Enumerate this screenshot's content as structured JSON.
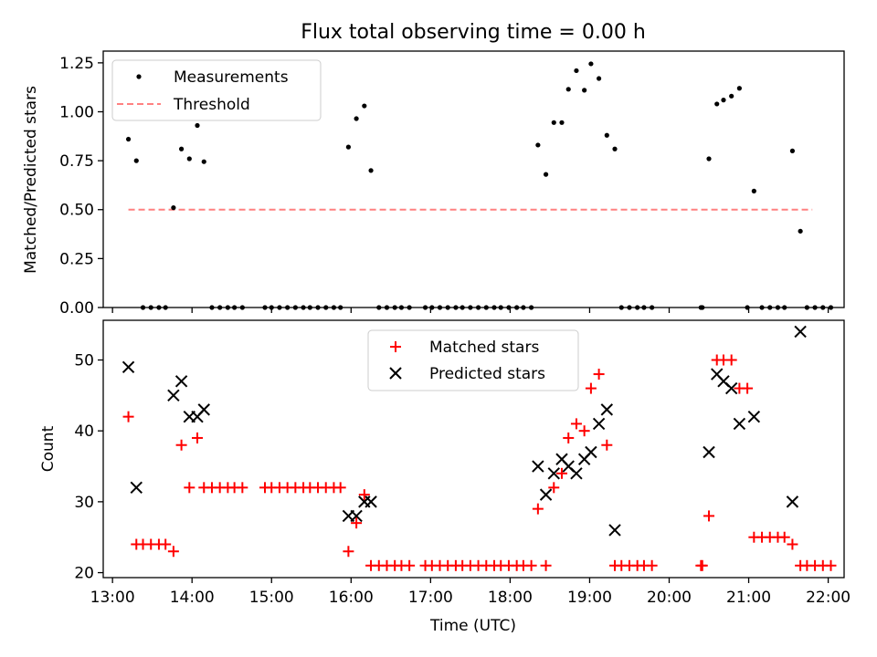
{
  "title": "Flux total observing time = 0.00 h",
  "chart_data": [
    {
      "type": "scatter",
      "xlabel": "",
      "ylabel": "Matched/Predicted stars",
      "xlim": [
        "12:53",
        "22:12"
      ],
      "ylim": [
        0,
        1.31
      ],
      "yticks": [
        "0.00",
        "0.25",
        "0.50",
        "0.75",
        "1.00",
        "1.25"
      ],
      "grid": false,
      "legend": {
        "placement": "top-left",
        "entries": [
          "Measurements",
          "Threshold"
        ]
      },
      "threshold": {
        "name": "Threshold",
        "y": 0.5,
        "x": [
          "13:12",
          "21:48"
        ],
        "color": "#ff8080",
        "style": "dashed"
      },
      "series": [
        {
          "name": "Measurements",
          "marker": "dot",
          "color": "#000000",
          "points": [
            [
              "13:12",
              0.86
            ],
            [
              "13:18",
              0.75
            ],
            [
              "13:23",
              0
            ],
            [
              "13:29",
              0
            ],
            [
              "13:35",
              0
            ],
            [
              "13:40",
              0
            ],
            [
              "13:46",
              0.51
            ],
            [
              "13:52",
              0.81
            ],
            [
              "13:58",
              0.76
            ],
            [
              "14:04",
              0.93
            ],
            [
              "14:09",
              0.745
            ],
            [
              "14:15",
              0
            ],
            [
              "14:21",
              0
            ],
            [
              "14:27",
              0
            ],
            [
              "14:32",
              0
            ],
            [
              "14:38",
              0
            ],
            [
              "14:55",
              0
            ],
            [
              "15:00",
              0
            ],
            [
              "15:06",
              0
            ],
            [
              "15:12",
              0
            ],
            [
              "15:18",
              0
            ],
            [
              "15:24",
              0
            ],
            [
              "15:29",
              0
            ],
            [
              "15:35",
              0
            ],
            [
              "15:41",
              0
            ],
            [
              "15:47",
              0
            ],
            [
              "15:52",
              0
            ],
            [
              "15:58",
              0.82
            ],
            [
              "16:04",
              0.965
            ],
            [
              "16:10",
              1.03
            ],
            [
              "16:15",
              0.7
            ],
            [
              "16:21",
              0
            ],
            [
              "16:27",
              0
            ],
            [
              "16:33",
              0
            ],
            [
              "16:38",
              0
            ],
            [
              "16:44",
              0
            ],
            [
              "16:56",
              0
            ],
            [
              "17:01",
              0
            ],
            [
              "17:07",
              0
            ],
            [
              "17:13",
              0
            ],
            [
              "17:19",
              0
            ],
            [
              "17:24",
              0
            ],
            [
              "17:30",
              0
            ],
            [
              "17:36",
              0
            ],
            [
              "17:42",
              0
            ],
            [
              "17:48",
              0
            ],
            [
              "17:53",
              0
            ],
            [
              "17:59",
              0
            ],
            [
              "18:05",
              0
            ],
            [
              "18:10",
              0
            ],
            [
              "18:16",
              0
            ],
            [
              "18:21",
              0.83
            ],
            [
              "18:27",
              0.68
            ],
            [
              "18:33",
              0.945
            ],
            [
              "18:39",
              0.945
            ],
            [
              "18:44",
              1.115
            ],
            [
              "18:50",
              1.21
            ],
            [
              "18:56",
              1.11
            ],
            [
              "19:01",
              1.245
            ],
            [
              "19:07",
              1.17
            ],
            [
              "19:13",
              0.88
            ],
            [
              "19:19",
              0.81
            ],
            [
              "19:24",
              0
            ],
            [
              "19:30",
              0
            ],
            [
              "19:36",
              0
            ],
            [
              "19:41",
              0
            ],
            [
              "19:47",
              0
            ],
            [
              "20:24",
              0
            ],
            [
              "20:25",
              0
            ],
            [
              "20:30",
              0.76
            ],
            [
              "20:36",
              1.04
            ],
            [
              "20:41",
              1.06
            ],
            [
              "20:47",
              1.08
            ],
            [
              "20:53",
              1.12
            ],
            [
              "20:59",
              0
            ],
            [
              "21:04",
              0.595
            ],
            [
              "21:10",
              0
            ],
            [
              "21:16",
              0
            ],
            [
              "21:22",
              0
            ],
            [
              "21:27",
              0
            ],
            [
              "21:33",
              0.8
            ],
            [
              "21:39",
              0.39
            ],
            [
              "21:44",
              0
            ],
            [
              "21:50",
              0
            ],
            [
              "21:56",
              0
            ],
            [
              "22:02",
              0
            ]
          ]
        }
      ]
    },
    {
      "type": "scatter",
      "xlabel": "Time (UTC)",
      "ylabel": "Count",
      "xlim": [
        "12:53",
        "22:12"
      ],
      "ylim": [
        19.3,
        55.6
      ],
      "yticks": [
        "20",
        "30",
        "40",
        "50"
      ],
      "xticks": [
        "13:00",
        "14:00",
        "15:00",
        "16:00",
        "17:00",
        "18:00",
        "19:00",
        "20:00",
        "21:00",
        "22:00"
      ],
      "grid": false,
      "legend": {
        "placement": "top-center",
        "entries": [
          "Matched stars",
          "Predicted stars"
        ]
      },
      "series": [
        {
          "name": "Matched stars",
          "marker": "plus",
          "color": "#ff0000",
          "points": [
            [
              "13:12",
              42
            ],
            [
              "13:18",
              24
            ],
            [
              "13:23",
              24
            ],
            [
              "13:29",
              24
            ],
            [
              "13:35",
              24
            ],
            [
              "13:40",
              24
            ],
            [
              "13:46",
              23
            ],
            [
              "13:52",
              38
            ],
            [
              "13:58",
              32
            ],
            [
              "14:04",
              39
            ],
            [
              "14:09",
              32
            ],
            [
              "14:15",
              32
            ],
            [
              "14:21",
              32
            ],
            [
              "14:27",
              32
            ],
            [
              "14:32",
              32
            ],
            [
              "14:38",
              32
            ],
            [
              "14:55",
              32
            ],
            [
              "15:00",
              32
            ],
            [
              "15:06",
              32
            ],
            [
              "15:12",
              32
            ],
            [
              "15:18",
              32
            ],
            [
              "15:24",
              32
            ],
            [
              "15:29",
              32
            ],
            [
              "15:35",
              32
            ],
            [
              "15:41",
              32
            ],
            [
              "15:47",
              32
            ],
            [
              "15:52",
              32
            ],
            [
              "15:58",
              23
            ],
            [
              "16:04",
              27
            ],
            [
              "16:10",
              31
            ],
            [
              "16:15",
              21
            ],
            [
              "16:21",
              21
            ],
            [
              "16:27",
              21
            ],
            [
              "16:33",
              21
            ],
            [
              "16:38",
              21
            ],
            [
              "16:44",
              21
            ],
            [
              "16:56",
              21
            ],
            [
              "17:01",
              21
            ],
            [
              "17:07",
              21
            ],
            [
              "17:13",
              21
            ],
            [
              "17:19",
              21
            ],
            [
              "17:24",
              21
            ],
            [
              "17:30",
              21
            ],
            [
              "17:36",
              21
            ],
            [
              "17:42",
              21
            ],
            [
              "17:48",
              21
            ],
            [
              "17:53",
              21
            ],
            [
              "17:59",
              21
            ],
            [
              "18:05",
              21
            ],
            [
              "18:10",
              21
            ],
            [
              "18:16",
              21
            ],
            [
              "18:21",
              29
            ],
            [
              "18:27",
              21
            ],
            [
              "18:33",
              32
            ],
            [
              "18:39",
              34
            ],
            [
              "18:44",
              39
            ],
            [
              "18:50",
              41
            ],
            [
              "18:56",
              40
            ],
            [
              "19:01",
              46
            ],
            [
              "19:07",
              48
            ],
            [
              "19:13",
              38
            ],
            [
              "19:19",
              21
            ],
            [
              "19:24",
              21
            ],
            [
              "19:30",
              21
            ],
            [
              "19:36",
              21
            ],
            [
              "19:41",
              21
            ],
            [
              "19:47",
              21
            ],
            [
              "20:24",
              21
            ],
            [
              "20:25",
              21
            ],
            [
              "20:30",
              28
            ],
            [
              "20:36",
              50
            ],
            [
              "20:41",
              50
            ],
            [
              "20:47",
              50
            ],
            [
              "20:53",
              46
            ],
            [
              "20:59",
              46
            ],
            [
              "21:04",
              25
            ],
            [
              "21:10",
              25
            ],
            [
              "21:16",
              25
            ],
            [
              "21:22",
              25
            ],
            [
              "21:27",
              25
            ],
            [
              "21:33",
              24
            ],
            [
              "21:39",
              21
            ],
            [
              "21:44",
              21
            ],
            [
              "21:50",
              21
            ],
            [
              "21:56",
              21
            ],
            [
              "22:02",
              21
            ]
          ]
        },
        {
          "name": "Predicted stars",
          "marker": "x",
          "color": "#000000",
          "points": [
            [
              "13:12",
              49
            ],
            [
              "13:18",
              32
            ],
            [
              "13:46",
              45
            ],
            [
              "13:52",
              47
            ],
            [
              "13:58",
              42
            ],
            [
              "14:04",
              42
            ],
            [
              "14:09",
              43
            ],
            [
              "15:58",
              28
            ],
            [
              "16:04",
              28
            ],
            [
              "16:10",
              30
            ],
            [
              "16:15",
              30
            ],
            [
              "18:21",
              35
            ],
            [
              "18:27",
              31
            ],
            [
              "18:33",
              34
            ],
            [
              "18:39",
              36
            ],
            [
              "18:44",
              35
            ],
            [
              "18:50",
              34
            ],
            [
              "18:56",
              36
            ],
            [
              "19:01",
              37
            ],
            [
              "19:07",
              41
            ],
            [
              "19:13",
              43
            ],
            [
              "19:19",
              26
            ],
            [
              "20:30",
              37
            ],
            [
              "20:36",
              48
            ],
            [
              "20:41",
              47
            ],
            [
              "20:47",
              46
            ],
            [
              "20:53",
              41
            ],
            [
              "21:04",
              42
            ],
            [
              "21:33",
              30
            ],
            [
              "21:39",
              54
            ]
          ]
        }
      ]
    }
  ]
}
